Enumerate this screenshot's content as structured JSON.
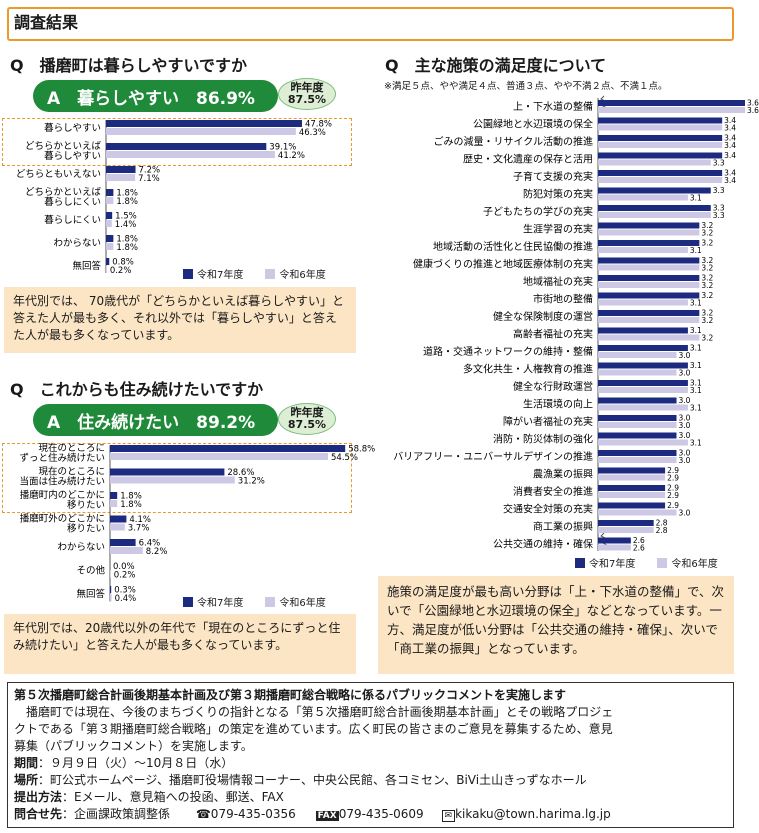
{
  "header": {
    "title": "調査結果"
  },
  "colors": {
    "navy": "#1c2a80",
    "lavender": "#cdc8e4",
    "green": "#1f8a3a",
    "orange": "#e89a2a",
    "note_bg": "#fbe5c4"
  },
  "legend": {
    "current": "令和7年度",
    "previous": "令和6年度"
  },
  "q1": {
    "question": "Q　播磨町は暮らしやすいですか",
    "answer": "A　暮らしやすい　86.9%",
    "prev_label": "昨年度",
    "prev_value": "87.5%",
    "note": "年代別では、 70歳代が「どちらかといえば暮らしやすい」と答えた人が最も多く、それ以外では「暮らしやすい」と答えた人が最も多くなっています。"
  },
  "q2": {
    "question": "Q　これからも住み続けたいですか",
    "answer": "A　住み続けたい　89.2%",
    "prev_label": "昨年度",
    "prev_value": "87.5%",
    "note": "年代別では、20歳代以外の年代で「現在のところにずっと住み続けたい」と答えた人が最も多くなっています。"
  },
  "q3": {
    "question": "Q　主な施策の満足度について",
    "scale_note": "※満足５点、やや満足４点、普通３点、やや不満２点、不満１点。",
    "note": "施策の満足度が最も高い分野は「上・下水道の整備」で、次いで「公園緑地と水辺環境の保全」などとなっています。一方、満足度が低い分野は「公共交通の維持・確保」、次いで「商工業の振興」となっています。"
  },
  "chart_data": [
    {
      "type": "bar",
      "orientation": "horizontal",
      "categories": [
        "暮らしやすい",
        "どちらかといえば|暮らしやすい",
        "どちらともいえない",
        "どちらかといえば|暮らしにくい",
        "暮らしにくい",
        "わからない",
        "無回答"
      ],
      "series": [
        {
          "name": "令和7年度",
          "values": [
            47.8,
            39.1,
            7.2,
            1.8,
            1.5,
            1.8,
            0.8
          ]
        },
        {
          "name": "令和6年度",
          "values": [
            46.3,
            41.2,
            7.1,
            1.8,
            1.4,
            1.8,
            0.2
          ]
        }
      ],
      "unit": "%",
      "xlim": [
        0,
        100
      ]
    },
    {
      "type": "bar",
      "orientation": "horizontal",
      "categories": [
        "現在のところに|ずっと住み続けたい",
        "現在のところに|当面は住み続けたい",
        "播磨町内のどこかに|移りたい",
        "播磨町外のどこかに|移りたい",
        "わからない",
        "その他",
        "無回答"
      ],
      "series": [
        {
          "name": "令和7年度",
          "values": [
            58.8,
            28.6,
            1.8,
            4.1,
            6.4,
            0.0,
            0.3
          ]
        },
        {
          "name": "令和6年度",
          "values": [
            54.5,
            31.2,
            1.8,
            3.7,
            8.2,
            0.2,
            0.4
          ]
        }
      ],
      "unit": "%",
      "xlim": [
        0,
        100
      ]
    },
    {
      "type": "bar",
      "orientation": "horizontal",
      "axis_break": true,
      "categories": [
        "上・下水道の整備",
        "公園緑地と水辺環境の保全",
        "ごみの減量・リサイクル活動の推進",
        "歴史・文化遺産の保存と活用",
        "子育て支援の充実",
        "防犯対策の充実",
        "子どもたちの学びの充実",
        "生涯学習の充実",
        "地域活動の活性化と住民協働の推進",
        "健康づくりの推進と地域医療体制の充実",
        "地域福祉の充実",
        "市街地の整備",
        "健全な保険制度の運営",
        "高齢者福祉の充実",
        "道路・交通ネットワークの維持・整備",
        "多文化共生・人権教育の推進",
        "健全な行財政運営",
        "生活環境の向上",
        "障がい者福祉の充実",
        "消防・防災体制の強化",
        "バリアフリー・ユニバーサルデザインの推進",
        "農漁業の振興",
        "消費者安全の推進",
        "交通安全対策の充実",
        "商工業の振興",
        "公共交通の維持・確保"
      ],
      "series": [
        {
          "name": "令和7年度",
          "values": [
            3.6,
            3.4,
            3.4,
            3.4,
            3.4,
            3.3,
            3.3,
            3.2,
            3.2,
            3.2,
            3.2,
            3.2,
            3.2,
            3.1,
            3.1,
            3.1,
            3.1,
            3.0,
            3.0,
            3.0,
            3.0,
            2.9,
            2.9,
            2.9,
            2.8,
            2.6
          ]
        },
        {
          "name": "令和6年度",
          "values": [
            3.6,
            3.4,
            3.4,
            3.3,
            3.4,
            3.1,
            3.3,
            3.2,
            3.1,
            3.2,
            3.2,
            3.1,
            3.2,
            3.2,
            3.0,
            3.0,
            3.1,
            3.1,
            3.0,
            3.1,
            3.0,
            2.9,
            2.9,
            3.0,
            2.8,
            2.6
          ]
        }
      ],
      "xlim": [
        0,
        3.6
      ]
    }
  ],
  "public_comment": {
    "title": "第５次播磨町総合計画後期基本計画及び第３期播磨町総合戦略に係るパブリックコメントを実施します",
    "body_lines": [
      "播磨町では現在、今後のまちづくりの指針となる「第５次播磨町総合計画後期基本計画」とその戦略プロジェ",
      "クトである「第３期播磨町総合戦略」の策定を進めています。広く町民の皆さまのご意見を募集するため、意見",
      "募集（パブリックコメント）を実施します。"
    ],
    "period_label": "期間",
    "period_value": "：９月９日（火）～10月８日（水）",
    "place_label": "場所",
    "place_value": "：町公式ホームページ、播磨町役場情報コーナー、中央公民館、各コミセン、BiVi土山きっずなホール",
    "method_label": "提出方法",
    "method_value": "：Eメール、意見箱への投函、郵送、FAX",
    "contact_label": "問合せ先",
    "contact_value": "：企画課政策調整係",
    "tel": "☎079-435-0356",
    "fax_icon": "FAX",
    "fax": "079-435-0609",
    "email": "kikaku@town.harima.lg.jp"
  }
}
